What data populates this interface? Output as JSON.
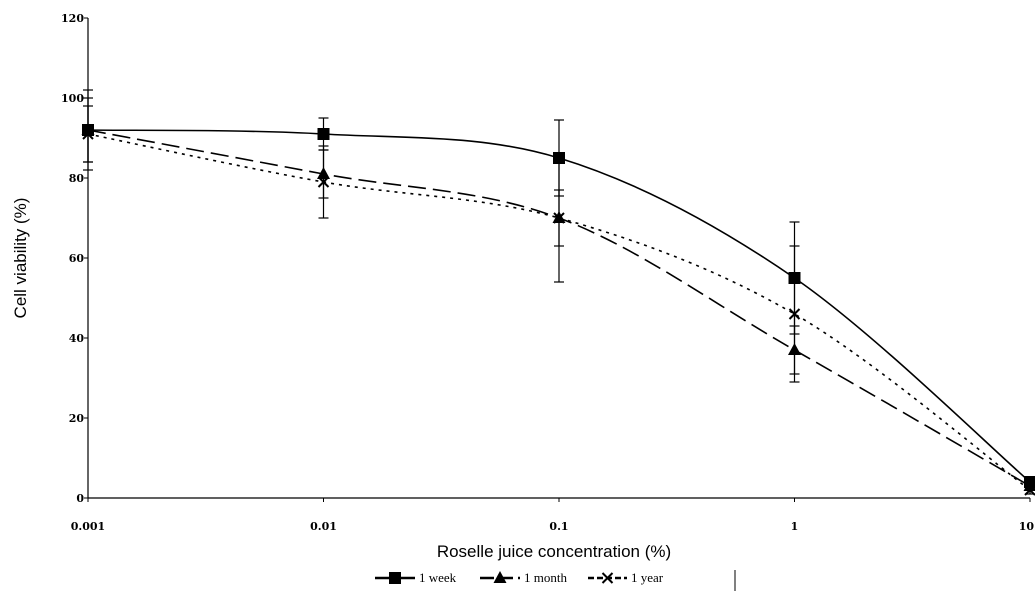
{
  "chart_data": {
    "type": "line",
    "title": "",
    "xlabel": "Roselle juice concentration (%)",
    "ylabel": "Cell viability (%)",
    "x_scale": "log",
    "x": [
      0.001,
      0.01,
      0.1,
      1,
      10
    ],
    "x_tick_labels": [
      "0.001",
      "0.01",
      "0.1",
      "1",
      "10"
    ],
    "ylim": [
      0,
      120
    ],
    "y_ticks": [
      0,
      20,
      40,
      60,
      80,
      100,
      120
    ],
    "y_tick_labels": [
      "0",
      "20",
      "40",
      "60",
      "80",
      "100",
      "120"
    ],
    "grid": false,
    "legend_position": "bottom",
    "series": [
      {
        "name": "1 week",
        "values": [
          92,
          91,
          85,
          55,
          4
        ],
        "errors": [
          10,
          4,
          9.5,
          14,
          1
        ],
        "marker": "square",
        "line_style": "solid",
        "color": "#000000"
      },
      {
        "name": "1 month",
        "values": [
          92,
          81,
          70,
          37,
          3
        ],
        "errors": [
          8,
          6,
          7,
          6,
          1
        ],
        "marker": "triangle",
        "line_style": "long-dash",
        "color": "#000000"
      },
      {
        "name": "1 year",
        "values": [
          91,
          79,
          70,
          46,
          2
        ],
        "errors": [
          7,
          9,
          16,
          17,
          1
        ],
        "marker": "x",
        "line_style": "dotted",
        "color": "#000000"
      }
    ]
  }
}
